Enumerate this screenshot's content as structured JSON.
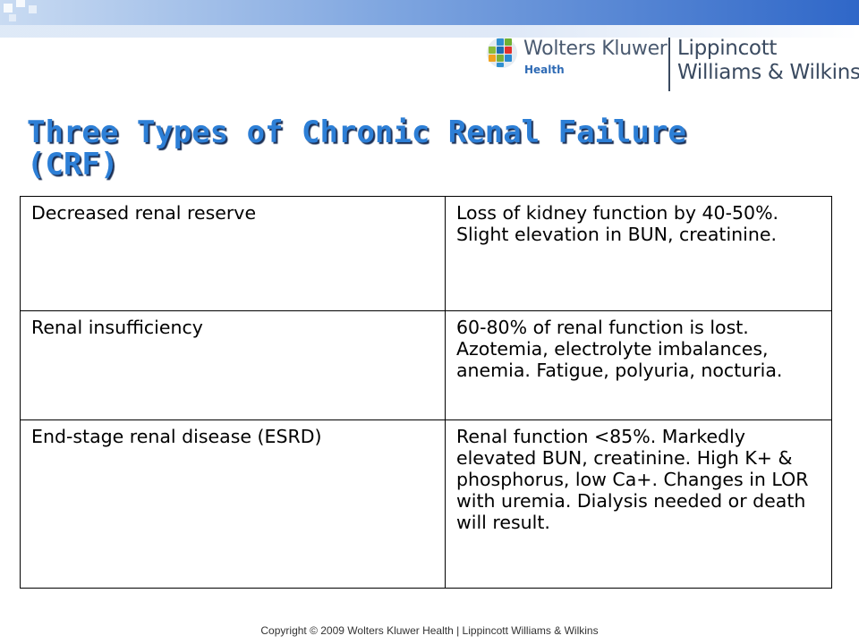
{
  "header": {
    "logo": {
      "icon": "wolters-kluwer-globe-icon",
      "company": "Wolters Kluwer",
      "division": "Health",
      "imprint_line1": "Lippincott",
      "imprint_line2": "Williams & Wilkins"
    },
    "accent_colors": {
      "band_light": "#c9dbf2",
      "band_dark": "#2f67c8",
      "title_blue": "#2d7fd6"
    }
  },
  "slide": {
    "title_line1": "Three Types of Chronic Renal Failure",
    "title_line2": "(CRF)"
  },
  "table": {
    "rows": [
      {
        "stage": "Decreased renal reserve",
        "description": "Loss of kidney function by 40-50%. Slight elevation in BUN, creatinine."
      },
      {
        "stage": "Renal insufficiency",
        "description": "60-80% of renal function is lost. Azotemia, electrolyte imbalances, anemia. Fatigue, polyuria, nocturia."
      },
      {
        "stage": "End-stage renal disease (ESRD)",
        "description": "Renal function <85%. Markedly elevated BUN, creatinine. High K+ & phosphorus, low Ca+. Changes in LOR with uremia. Dialysis needed or death will result."
      }
    ]
  },
  "footer": {
    "copyright": "Copyright © 2009 Wolters Kluwer Health | Lippincott Williams & Wilkins"
  }
}
